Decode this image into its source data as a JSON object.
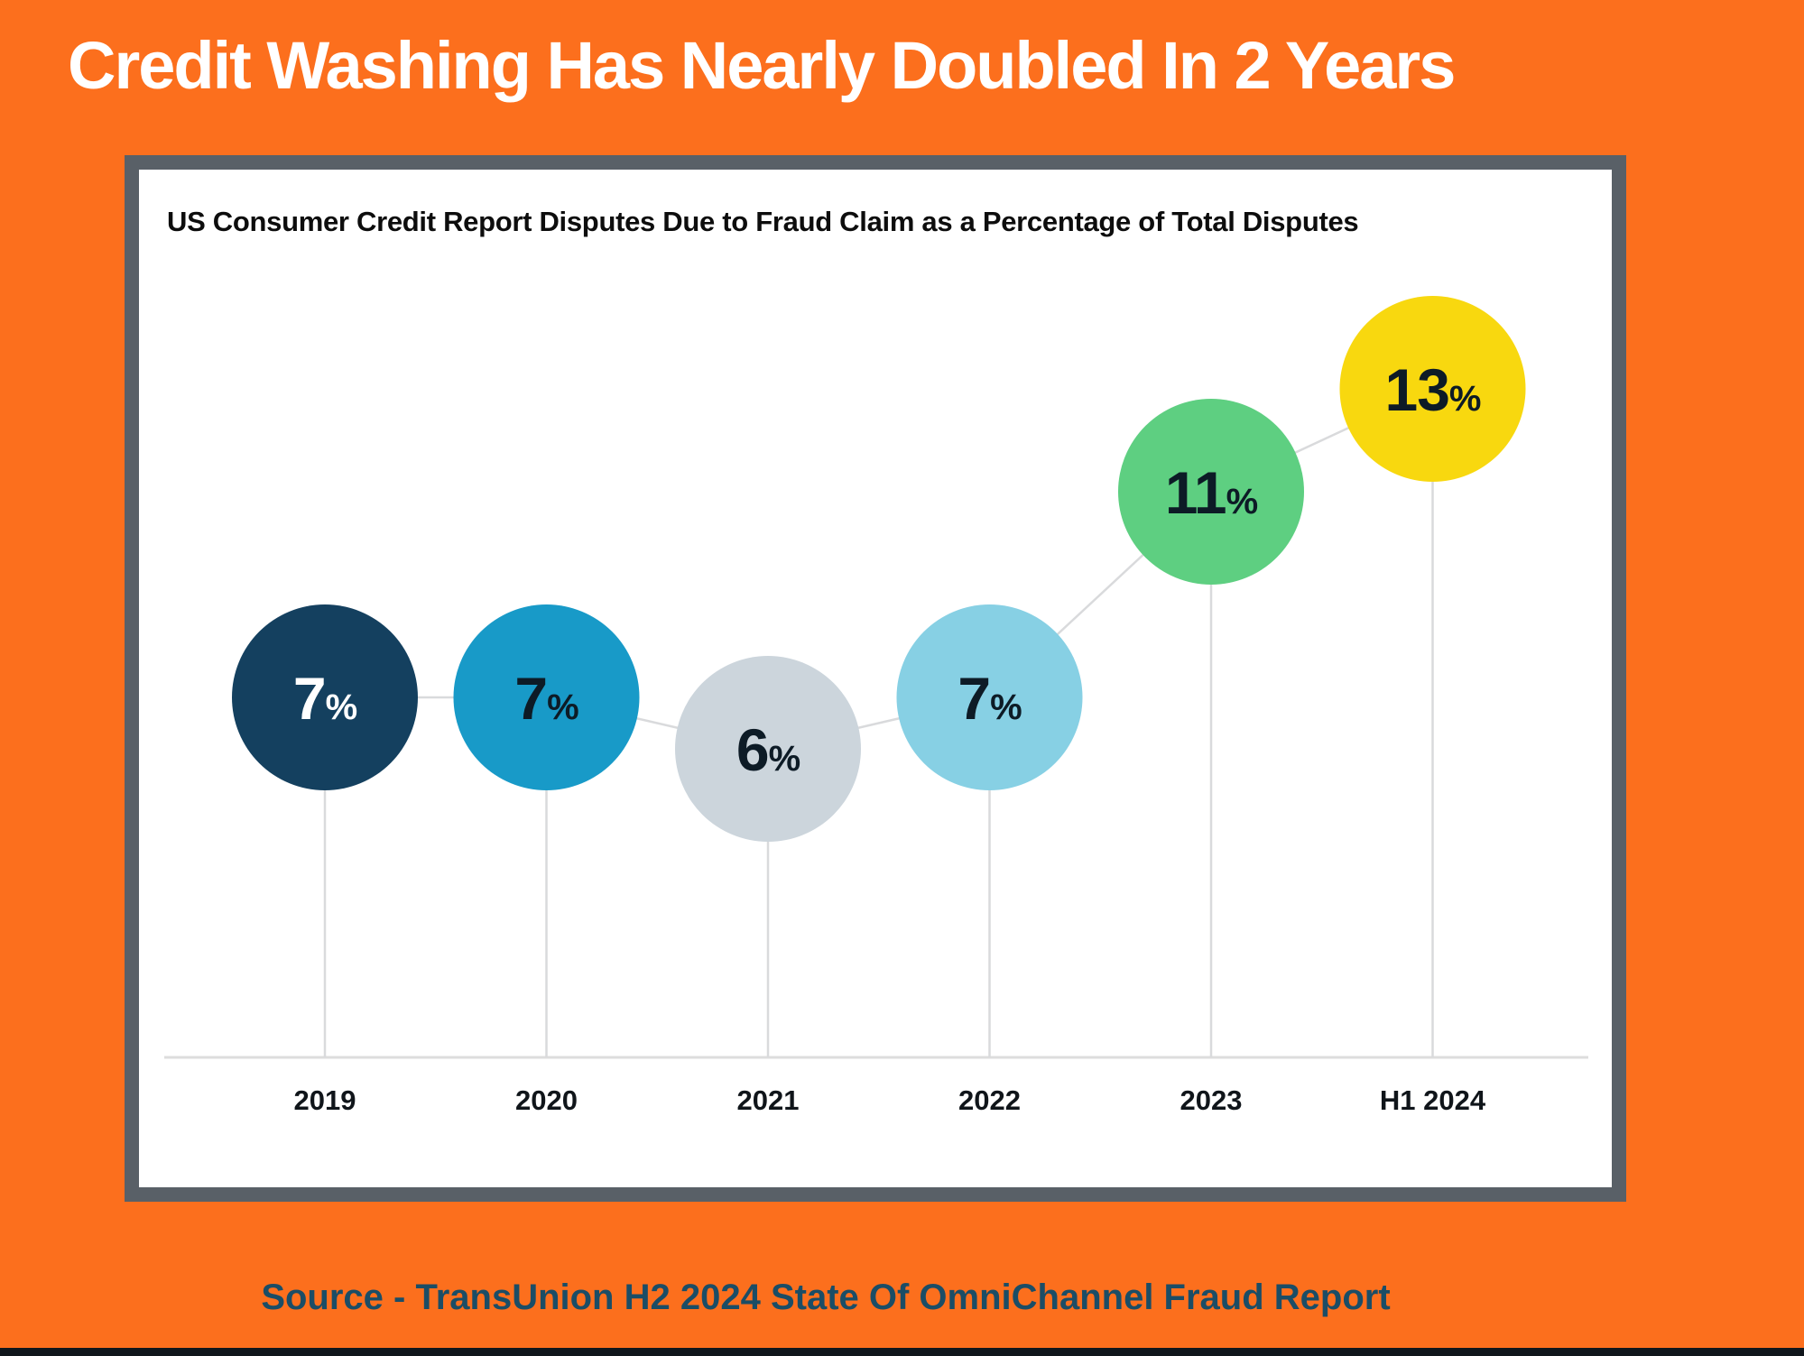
{
  "page": {
    "title": "Credit Washing Has Nearly Doubled In 2 Years",
    "source_line": "Source - TransUnion H2 2024 State Of OmniChannel Fraud Report"
  },
  "chart_data": {
    "type": "scatter",
    "variant": "bubble-timeline",
    "title": "US Consumer Credit Report Disputes Due to Fraud Claim as a Percentage of Total Disputes",
    "categories": [
      "2019",
      "2020",
      "2021",
      "2022",
      "2023",
      "H1 2024"
    ],
    "values": [
      7,
      7,
      6,
      7,
      11,
      13
    ],
    "value_suffix": "%",
    "xlabel": "",
    "ylabel": "",
    "ylim": [
      0,
      17
    ],
    "gridlines": false,
    "legend": "none",
    "axis_line_on": true,
    "point_colors": [
      "#14405f",
      "#189ac8",
      "#ccd5dc",
      "#87d0e4",
      "#5ecf81",
      "#f8d80f"
    ],
    "label_colors": [
      "#ffffff",
      "#0d1b26",
      "#0d1b26",
      "#0d1b26",
      "#0d1b26",
      "#0d1b26"
    ],
    "connector_color": "#d9dadc",
    "axis_line_color": "#dddddd",
    "axis_label_color": "#10151a"
  },
  "colors": {
    "background": "#fc6f1d",
    "card_border": "#596067",
    "card_bg": "#ffffff",
    "title_text": "#ffffff",
    "subtitle_text": "#0d0d0d",
    "source_text": "#1b4d66",
    "bottom_strip": "#10161c"
  }
}
